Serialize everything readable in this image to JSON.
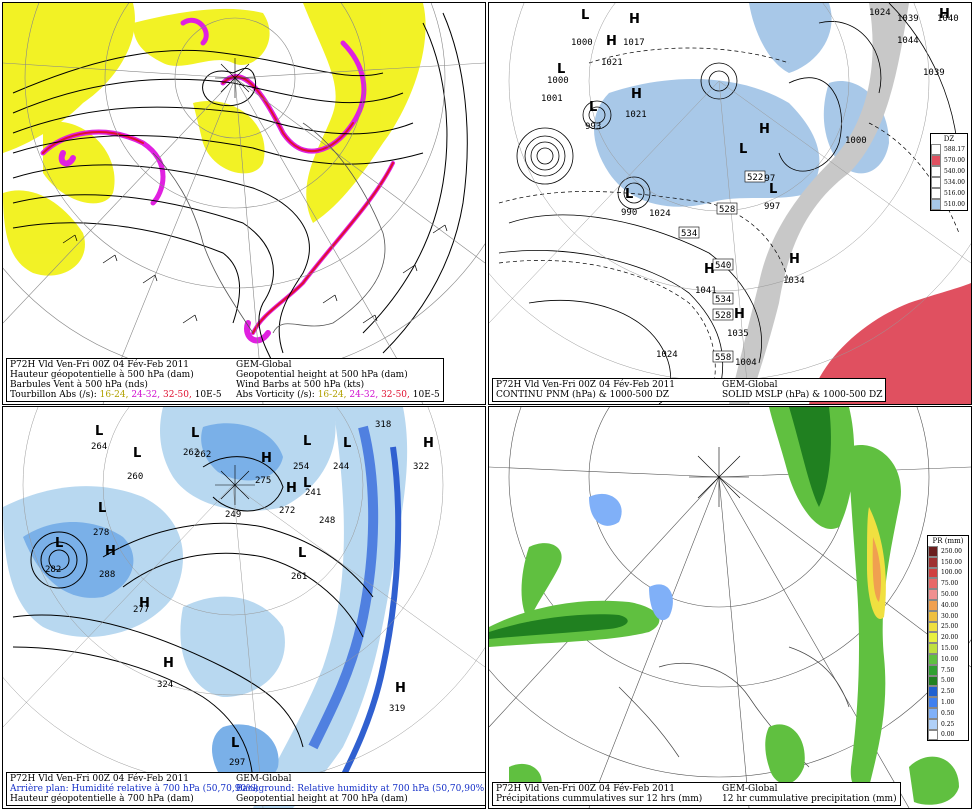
{
  "panels": {
    "top_left": {
      "caption": {
        "line1_left": "P72H Vld Ven-Fri 00Z 04 Fév-Feb 2011",
        "line1_right": "GEM-Global",
        "line2_left": "Hauteur géopotentielle à 500 hPa (dam)",
        "line2_right": "Geopotential height at 500 hPa (dam)",
        "line3_left": "Barbules Vent à 500 hPa (nds)",
        "line3_right": "Wind Barbs at 500 hPa (kts)",
        "line4_left_prefix": "Tourbillon Abs (/s):",
        "line4_right_prefix": "Abs Vorticity (/s):",
        "ranges": [
          "16-24,",
          "24-32,",
          "32-50,"
        ],
        "unit": "10E-5",
        "range_colors": [
          "#c8c800",
          "#e020e0",
          "#e01030"
        ]
      }
    },
    "top_right": {
      "caption": {
        "line1_left": "P72H Vld Ven-Fri 00Z 04 Fév-Feb 2011",
        "line1_right": "GEM-Global",
        "line2_left": "CONTINU PNM (hPa) & 1000-500 DZ",
        "line2_right": "SOLID   MSLP (hPa) & 1000-500 DZ"
      },
      "colorbar": {
        "title": "DZ",
        "labels": [
          "588.17",
          "570.00",
          "540.00",
          "534.00",
          "516.00",
          "510.00"
        ],
        "colors": [
          "#ffffff",
          "#e05060",
          "#ffffff",
          "#ffffff",
          "#ffffff",
          "#a8c8e8"
        ]
      },
      "highs": [
        "1017",
        "1021",
        "1021",
        "1024",
        "1024",
        "1024",
        "1034",
        "1035",
        "1039",
        "1040",
        "1044",
        "1039",
        "1041",
        "1004"
      ],
      "lows": [
        "1000",
        "1000",
        "1001",
        "993",
        "990",
        "997",
        "997",
        "1000"
      ],
      "dz_boxes": [
        "522",
        "528",
        "534",
        "540",
        "534",
        "528",
        "558"
      ]
    },
    "bottom_left": {
      "caption": {
        "line1_left": "P72H Vld Ven-Fri 00Z 04 Fév-Feb 2011",
        "line1_right": "GEM-Global",
        "line2_left": "Arrière plan: Humidité relative à 700 hPa (50,70,90%)",
        "line2_right": "Background: Relative humidity at 700 hPa (50,70,90%)",
        "line3_left": "Hauteur géopotentielle à 700 hPa (dam)",
        "line3_right": "Geopotential height at 700 hPa (dam)"
      },
      "highs": [
        "322",
        "288",
        "324",
        "319",
        "275",
        "272",
        "262",
        "277"
      ],
      "lows": [
        "264",
        "262",
        "260",
        "278",
        "282",
        "249",
        "254",
        "244",
        "241",
        "248",
        "261",
        "297",
        "318"
      ]
    },
    "bottom_right": {
      "caption": {
        "line1_left": "P72H Vld Ven-Fri 00Z 04 Fév-Feb 2011",
        "line1_right": "GEM-Global",
        "line2_left": "Précipitations cummulatives sur 12 hrs (mm)",
        "line2_right": "12 hr cummulative precipitation     (mm)"
      },
      "colorbar": {
        "title": "PR (mm)",
        "labels": [
          "250.00",
          "150.00",
          "100.00",
          "75.00",
          "50.00",
          "40.00",
          "30.00",
          "25.00",
          "20.00",
          "15.00",
          "10.00",
          "7.50",
          "5.00",
          "2.50",
          "1.00",
          "0.50",
          "0.25",
          "0.00"
        ],
        "colors": [
          "#6a1e1e",
          "#a03030",
          "#d04040",
          "#e86868",
          "#f09090",
          "#f0a050",
          "#f0c040",
          "#f0e040",
          "#e8f040",
          "#c0e040",
          "#60c040",
          "#30a030",
          "#208020",
          "#2060d0",
          "#4080f0",
          "#80b0f8",
          "#b0d0f8",
          "#ffffff"
        ]
      }
    }
  }
}
